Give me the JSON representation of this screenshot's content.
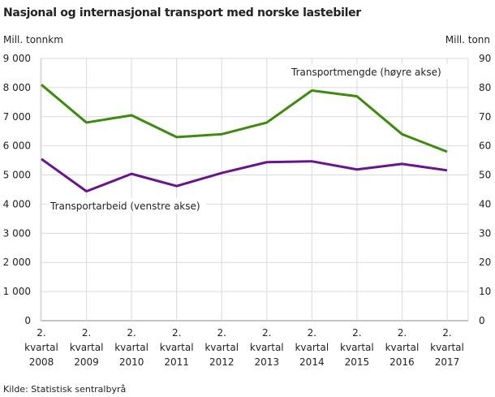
{
  "chart_data": {
    "type": "line",
    "title": "Nasjonal og internasjonal transport med norske lastebiler",
    "ylabel_left": "Mill. tonnkm",
    "ylabel_right": "Mill. tonn",
    "categories": [
      [
        "2.",
        "kvartal",
        "2008"
      ],
      [
        "2.",
        "kvartal",
        "2009"
      ],
      [
        "2.",
        "kvartal",
        "2010"
      ],
      [
        "2.",
        "kvartal",
        "2011"
      ],
      [
        "2.",
        "kvartal",
        "2012"
      ],
      [
        "2.",
        "kvartal",
        "2013"
      ],
      [
        "2.",
        "kvartal",
        "2014"
      ],
      [
        "2.",
        "kvartal",
        "2015"
      ],
      [
        "2.",
        "kvartal",
        "2016"
      ],
      [
        "2.",
        "kvartal",
        "2017"
      ]
    ],
    "ylim_left": [
      0,
      9000
    ],
    "ylim_right": [
      0,
      90
    ],
    "yticks_left": [
      "0",
      "1 000",
      "2 000",
      "3 000",
      "4 000",
      "5 000",
      "6 000",
      "7 000",
      "8 000",
      "9 000"
    ],
    "yticks_right": [
      "0",
      "10",
      "20",
      "30",
      "40",
      "50",
      "60",
      "70",
      "80",
      "90"
    ],
    "grid": true,
    "series": [
      {
        "name": "Transportmengde  (høyre akse)",
        "axis": "right",
        "color": "#3c8a0e",
        "values": [
          81,
          68,
          70.5,
          63,
          64,
          68,
          79,
          77,
          64,
          58
        ]
      },
      {
        "name": "Transportarbeid  (venstre akse)",
        "axis": "left",
        "color": "#6b138f",
        "values": [
          5550,
          4440,
          5040,
          4620,
          5070,
          5440,
          5470,
          5190,
          5380,
          5160
        ]
      }
    ],
    "source": "Kilde: Statistisk sentralbyrå"
  }
}
